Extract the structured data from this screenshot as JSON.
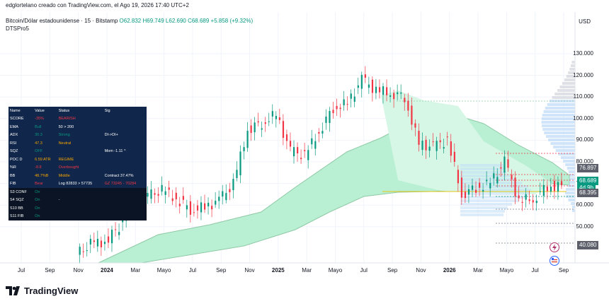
{
  "header": {
    "attribution": "edglortelano creado con TradingView.com, el Ago 19, 2026 17:40 UTC+2",
    "symbol": "Bitcoin/Dólar estadounidense · 15 · Bitstamp",
    "ohlc": "O62.832 H69.749 L62.690 C68.689 +5.858 (+9.32%)",
    "indicator": "DTSPro5",
    "currency": "USD"
  },
  "axis": {
    "price_ticks": [
      "130.000",
      "120.000",
      "110.000",
      "100.000",
      "90.000",
      "80.000",
      "70.000",
      "60.000",
      "50.000"
    ],
    "badges": [
      {
        "label": "76.897",
        "kind": "gray"
      },
      {
        "label": "68.689",
        "kind": "green"
      },
      {
        "label": "4d 9h",
        "kind": "green"
      },
      {
        "label": "68.395",
        "kind": "gray"
      },
      {
        "label": "40.080",
        "kind": "gray"
      }
    ],
    "time_ticks": [
      {
        "label": "Jul",
        "bold": false
      },
      {
        "label": "Sep",
        "bold": false
      },
      {
        "label": "Nov",
        "bold": false
      },
      {
        "label": "2024",
        "bold": true
      },
      {
        "label": "Mar",
        "bold": false
      },
      {
        "label": "Mayo",
        "bold": false
      },
      {
        "label": "Jul",
        "bold": false
      },
      {
        "label": "Sep",
        "bold": false
      },
      {
        "label": "Nov",
        "bold": false
      },
      {
        "label": "2025",
        "bold": true
      },
      {
        "label": "Mar",
        "bold": false
      },
      {
        "label": "Mayo",
        "bold": false
      },
      {
        "label": "Jul",
        "bold": false
      },
      {
        "label": "Sep",
        "bold": false
      },
      {
        "label": "Nov",
        "bold": false
      },
      {
        "label": "2026",
        "bold": true
      },
      {
        "label": "Mar",
        "bold": false
      },
      {
        "label": "Mayo",
        "bold": false
      },
      {
        "label": "Jul",
        "bold": false
      },
      {
        "label": "Sep",
        "bold": false
      }
    ]
  },
  "table": {
    "header": [
      "Name",
      "Value",
      "Status",
      "Sig"
    ],
    "rows": [
      [
        "SCORE",
        "-35%",
        "BEARISH",
        ""
      ],
      [
        "EMA",
        "Bull",
        "50 > 200",
        ""
      ],
      [
        "ADX",
        "30.3",
        "Strong",
        "DI->DI+"
      ],
      [
        "RSI",
        "47.3",
        "Neutral",
        ""
      ],
      [
        "SQZ",
        "OFF",
        "",
        "Mom -1.11 ^"
      ],
      [
        "POC D",
        "6.59 ATR",
        "REGIME",
        ""
      ],
      [
        "%R",
        "-8.8",
        "Overbought",
        ""
      ],
      [
        "BB",
        "48.7%B",
        "Middle",
        "Contract 37.47%"
      ],
      [
        "FIB",
        "Bear",
        "Log 82833 > 57735",
        "GZ 73245 - 70284"
      ],
      [
        "S3 CONF",
        "On",
        "",
        ""
      ],
      [
        "S4 SQZ",
        "On",
        "-",
        ""
      ],
      [
        "S10 BB",
        "On",
        "",
        ""
      ],
      [
        "S11 FIB",
        "On",
        "",
        ""
      ]
    ]
  },
  "colors": {
    "up": "#089981",
    "down": "#f23645",
    "band": "#b9f0d3",
    "band_line": "#8fc9a6",
    "profile": "#bcdaf7",
    "yellow_line": "#e6c619"
  },
  "brand": "TradingView",
  "chart_data": {
    "type": "candlestick",
    "x_range": [
      "2023-06",
      "2026-09"
    ],
    "ylim": [
      35000,
      135000
    ],
    "price_path": [
      [
        "2023-11",
        37000
      ],
      [
        "2023-12",
        42000
      ],
      [
        "2024-01",
        43000
      ],
      [
        "2024-02",
        50000
      ],
      [
        "2024-03",
        70000
      ],
      [
        "2024-04",
        64000
      ],
      [
        "2024-05",
        67000
      ],
      [
        "2024-06",
        63000
      ],
      [
        "2024-07",
        58000
      ],
      [
        "2024-08",
        59000
      ],
      [
        "2024-09",
        62000
      ],
      [
        "2024-10",
        70000
      ],
      [
        "2024-11",
        95000
      ],
      [
        "2024-12",
        98000
      ],
      [
        "2025-01",
        102000
      ],
      [
        "2025-02",
        85000
      ],
      [
        "2025-03",
        83000
      ],
      [
        "2025-04",
        94000
      ],
      [
        "2025-05",
        105000
      ],
      [
        "2025-06",
        107000
      ],
      [
        "2025-07",
        118000
      ],
      [
        "2025-08",
        113000
      ],
      [
        "2025-09",
        112000
      ],
      [
        "2025-10",
        110000
      ],
      [
        "2025-11",
        88000
      ],
      [
        "2025-12",
        87000
      ],
      [
        "2026-01",
        90000
      ],
      [
        "2026-02",
        65000
      ],
      [
        "2026-03",
        68000
      ],
      [
        "2026-04",
        70000
      ],
      [
        "2026-05",
        80000
      ],
      [
        "2026-06",
        62000
      ],
      [
        "2026-07",
        63000
      ],
      [
        "2026-08",
        68689
      ]
    ]
  }
}
